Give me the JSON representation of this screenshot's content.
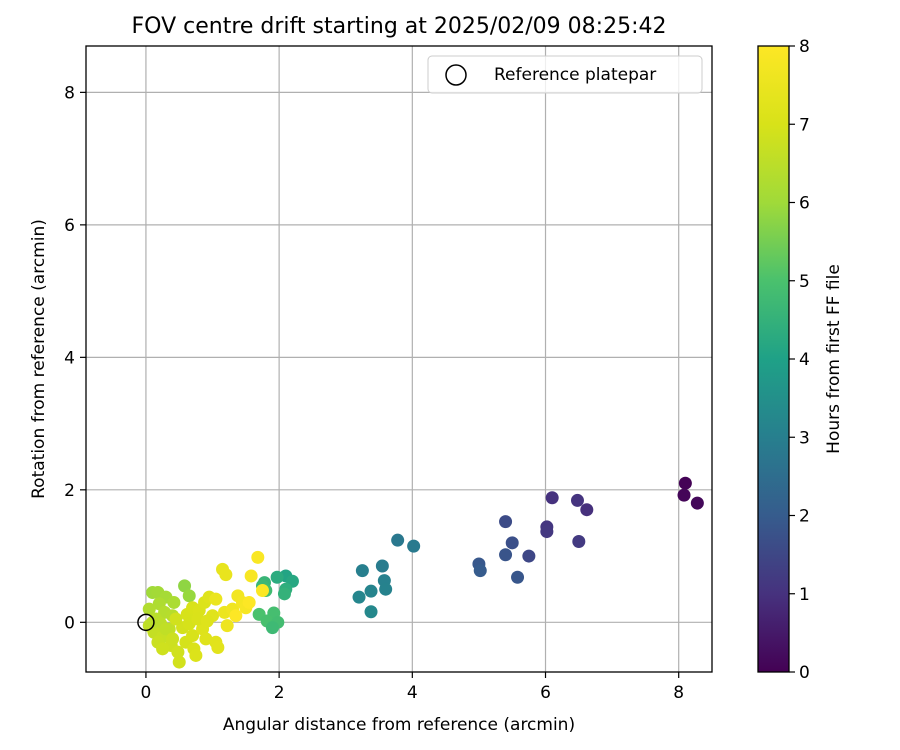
{
  "chart_data": {
    "type": "scatter",
    "title": "FOV centre drift starting at 2025/02/09 08:25:42",
    "xlabel": "Angular distance from reference (arcmin)",
    "ylabel": "Rotation from reference (arcmin)",
    "xlim": [
      -0.9,
      8.5
    ],
    "ylim": [
      -0.75,
      8.7
    ],
    "xticks": [
      0,
      2,
      4,
      6,
      8
    ],
    "yticks": [
      0,
      2,
      4,
      6,
      8
    ],
    "grid": true,
    "legend": {
      "position": "top-right",
      "label": "Reference platepar"
    },
    "reference_point": {
      "x": 0,
      "y": 0
    },
    "colorbar": {
      "label": "Hours from first FF file",
      "colormap": "viridis",
      "range": [
        0,
        8
      ],
      "ticks": [
        0,
        1,
        2,
        3,
        4,
        5,
        6,
        7,
        8
      ]
    },
    "points": [
      {
        "x": 8.1,
        "y": 2.1,
        "c": 0.05
      },
      {
        "x": 8.08,
        "y": 1.92,
        "c": 0.1
      },
      {
        "x": 8.28,
        "y": 1.8,
        "c": 0.15
      },
      {
        "x": 6.1,
        "y": 1.88,
        "c": 1.0
      },
      {
        "x": 6.48,
        "y": 1.84,
        "c": 1.05
      },
      {
        "x": 6.62,
        "y": 1.7,
        "c": 0.95
      },
      {
        "x": 6.02,
        "y": 1.44,
        "c": 1.1
      },
      {
        "x": 6.02,
        "y": 1.37,
        "c": 1.15
      },
      {
        "x": 6.5,
        "y": 1.22,
        "c": 1.2
      },
      {
        "x": 5.4,
        "y": 1.52,
        "c": 1.6
      },
      {
        "x": 5.5,
        "y": 1.2,
        "c": 1.7
      },
      {
        "x": 5.75,
        "y": 1.0,
        "c": 1.5
      },
      {
        "x": 5.4,
        "y": 1.02,
        "c": 1.8
      },
      {
        "x": 5.0,
        "y": 0.88,
        "c": 1.9
      },
      {
        "x": 5.02,
        "y": 0.78,
        "c": 2.0
      },
      {
        "x": 5.58,
        "y": 0.68,
        "c": 1.85
      },
      {
        "x": 3.78,
        "y": 1.24,
        "c": 2.8
      },
      {
        "x": 4.02,
        "y": 1.15,
        "c": 2.85
      },
      {
        "x": 3.55,
        "y": 0.85,
        "c": 2.9
      },
      {
        "x": 3.25,
        "y": 0.78,
        "c": 3.0
      },
      {
        "x": 3.58,
        "y": 0.63,
        "c": 3.05
      },
      {
        "x": 3.6,
        "y": 0.5,
        "c": 3.1
      },
      {
        "x": 3.38,
        "y": 0.47,
        "c": 3.15
      },
      {
        "x": 3.2,
        "y": 0.38,
        "c": 3.2
      },
      {
        "x": 3.38,
        "y": 0.16,
        "c": 3.25
      },
      {
        "x": 2.1,
        "y": 0.7,
        "c": 4.1
      },
      {
        "x": 2.2,
        "y": 0.62,
        "c": 4.2
      },
      {
        "x": 1.97,
        "y": 0.68,
        "c": 4.3
      },
      {
        "x": 2.1,
        "y": 0.5,
        "c": 4.4
      },
      {
        "x": 2.08,
        "y": 0.43,
        "c": 4.5
      },
      {
        "x": 1.78,
        "y": 0.6,
        "c": 4.6
      },
      {
        "x": 1.75,
        "y": 0.55,
        "c": 4.7
      },
      {
        "x": 1.8,
        "y": 0.48,
        "c": 4.8
      },
      {
        "x": 1.92,
        "y": 0.14,
        "c": 4.9
      },
      {
        "x": 1.7,
        "y": 0.12,
        "c": 5.0
      },
      {
        "x": 1.82,
        "y": 0.02,
        "c": 4.95
      },
      {
        "x": 1.98,
        "y": 0.0,
        "c": 4.85
      },
      {
        "x": 1.9,
        "y": -0.08,
        "c": 4.75
      },
      {
        "x": 0.58,
        "y": 0.55,
        "c": 5.8
      },
      {
        "x": 0.65,
        "y": 0.4,
        "c": 5.9
      },
      {
        "x": 0.1,
        "y": 0.45,
        "c": 6.0
      },
      {
        "x": 0.18,
        "y": 0.45,
        "c": 6.05
      },
      {
        "x": 0.3,
        "y": 0.38,
        "c": 6.1
      },
      {
        "x": 0.42,
        "y": 0.3,
        "c": 6.2
      },
      {
        "x": 0.2,
        "y": 0.28,
        "c": 6.25
      },
      {
        "x": 0.05,
        "y": 0.2,
        "c": 6.3
      },
      {
        "x": 0.28,
        "y": 0.15,
        "c": 6.35
      },
      {
        "x": 0.4,
        "y": 0.1,
        "c": 6.4
      },
      {
        "x": 0.15,
        "y": 0.05,
        "c": 6.45
      },
      {
        "x": 0.22,
        "y": -0.02,
        "c": 6.5
      },
      {
        "x": 0.05,
        "y": -0.05,
        "c": 6.55
      },
      {
        "x": 0.35,
        "y": -0.1,
        "c": 6.6
      },
      {
        "x": 0.12,
        "y": -0.15,
        "c": 6.65
      },
      {
        "x": 0.25,
        "y": -0.22,
        "c": 6.7
      },
      {
        "x": 0.18,
        "y": -0.3,
        "c": 6.75
      },
      {
        "x": 0.38,
        "y": -0.35,
        "c": 6.8
      },
      {
        "x": 0.48,
        "y": -0.45,
        "c": 6.85
      },
      {
        "x": 0.5,
        "y": -0.6,
        "c": 6.9
      },
      {
        "x": 0.6,
        "y": -0.3,
        "c": 6.95
      },
      {
        "x": 0.7,
        "y": -0.2,
        "c": 7.0
      },
      {
        "x": 0.72,
        "y": -0.4,
        "c": 7.05
      },
      {
        "x": 0.75,
        "y": -0.5,
        "c": 7.1
      },
      {
        "x": 0.85,
        "y": -0.1,
        "c": 7.15
      },
      {
        "x": 0.9,
        "y": -0.25,
        "c": 7.2
      },
      {
        "x": 0.55,
        "y": -0.08,
        "c": 6.92
      },
      {
        "x": 0.45,
        "y": 0.05,
        "c": 6.88
      },
      {
        "x": 0.62,
        "y": 0.12,
        "c": 6.98
      },
      {
        "x": 0.7,
        "y": 0.22,
        "c": 7.02
      },
      {
        "x": 0.8,
        "y": 0.18,
        "c": 7.08
      },
      {
        "x": 0.88,
        "y": 0.3,
        "c": 7.12
      },
      {
        "x": 0.95,
        "y": 0.38,
        "c": 7.18
      },
      {
        "x": 1.0,
        "y": 0.1,
        "c": 7.22
      },
      {
        "x": 1.05,
        "y": -0.3,
        "c": 7.25
      },
      {
        "x": 1.08,
        "y": -0.38,
        "c": 7.28
      },
      {
        "x": 1.15,
        "y": 0.8,
        "c": 7.4
      },
      {
        "x": 1.2,
        "y": 0.72,
        "c": 7.45
      },
      {
        "x": 1.05,
        "y": 0.35,
        "c": 7.5
      },
      {
        "x": 1.18,
        "y": 0.15,
        "c": 7.55
      },
      {
        "x": 1.22,
        "y": -0.05,
        "c": 7.6
      },
      {
        "x": 1.3,
        "y": 0.2,
        "c": 7.65
      },
      {
        "x": 1.38,
        "y": 0.4,
        "c": 7.7
      },
      {
        "x": 1.45,
        "y": 0.3,
        "c": 7.75
      },
      {
        "x": 1.5,
        "y": 0.22,
        "c": 7.8
      },
      {
        "x": 1.58,
        "y": 0.7,
        "c": 7.85
      },
      {
        "x": 1.68,
        "y": 0.98,
        "c": 7.9
      },
      {
        "x": 1.75,
        "y": 0.48,
        "c": 7.95
      },
      {
        "x": 1.55,
        "y": 0.3,
        "c": 7.98
      },
      {
        "x": 1.35,
        "y": 0.1,
        "c": 8.0
      },
      {
        "x": 0.3,
        "y": -0.1,
        "c": 6.58
      },
      {
        "x": 0.1,
        "y": 0.0,
        "c": 6.48
      },
      {
        "x": 0.4,
        "y": -0.25,
        "c": 6.78
      },
      {
        "x": 0.25,
        "y": -0.4,
        "c": 6.83
      },
      {
        "x": 0.65,
        "y": -0.02,
        "c": 6.97
      },
      {
        "x": 0.78,
        "y": 0.05,
        "c": 7.06
      },
      {
        "x": 0.92,
        "y": 0.02,
        "c": 7.16
      }
    ]
  }
}
